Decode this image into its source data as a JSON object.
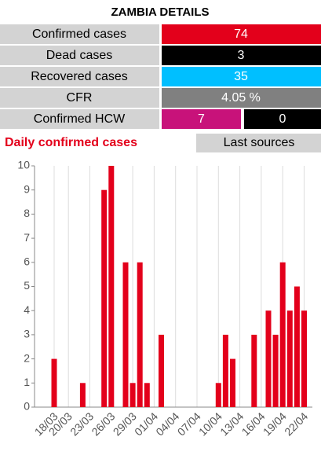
{
  "details": {
    "title": "ZAMBIA DETAILS",
    "rows": [
      {
        "label": "Confirmed cases",
        "value": 74,
        "color": "#e3001b"
      },
      {
        "label": "Dead cases",
        "value": 3,
        "color": "#000000"
      },
      {
        "label": "Recovered cases",
        "value": 35,
        "color": "#00bfff"
      },
      {
        "label": "CFR",
        "value": "4.05 %",
        "color": "#808080"
      }
    ],
    "hcw": {
      "label": "Confirmed HCW",
      "values": [
        7,
        0
      ],
      "colors": [
        "#c8127a",
        "#000000"
      ]
    },
    "sources_button": "Last sources"
  },
  "chart_data": {
    "type": "bar",
    "title": "Daily confirmed cases",
    "categories": [
      "18/03",
      null,
      "20/03",
      null,
      null,
      "23/03",
      null,
      null,
      "26/03",
      null,
      null,
      "29/03",
      null,
      null,
      "01/04",
      null,
      null,
      "04/04",
      null,
      null,
      "07/04",
      null,
      null,
      "10/04",
      null,
      null,
      "13/04",
      null,
      null,
      "16/04",
      null,
      null,
      "19/04",
      null,
      null,
      "22/04"
    ],
    "values": [
      2,
      0,
      0,
      0,
      1,
      0,
      0,
      9,
      10,
      0,
      6,
      1,
      6,
      1,
      0,
      3,
      0,
      0,
      0,
      0,
      0,
      0,
      0,
      1,
      3,
      2,
      0,
      0,
      3,
      0,
      4,
      3,
      6,
      4,
      5,
      4
    ],
    "color": "#e3001b",
    "ylim": [
      0,
      10
    ],
    "yticks": [
      0,
      1,
      2,
      3,
      4,
      5,
      6,
      7,
      8,
      9,
      10
    ],
    "grid": true
  }
}
